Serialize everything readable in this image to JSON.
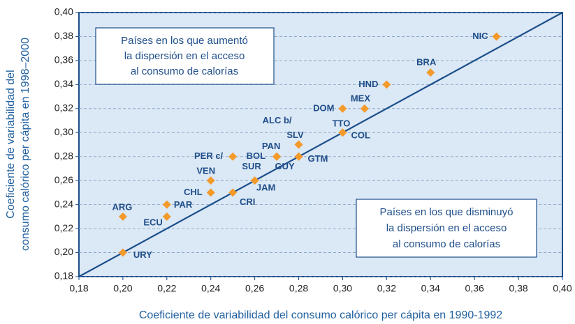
{
  "chart_data": {
    "type": "scatter",
    "x_label": "Coeficiente de variabilidad del consumo calórico per cápita en 1990-1992",
    "y_label": [
      "Coeficiente de variabilidad del",
      "consumo calórico per cápita en 1998–2000"
    ],
    "annotations": [
      [
        "Países en los que aumentó",
        "la dispersión en el acceso",
        "al consumo de calorías"
      ],
      [
        "Países en los que disminuyó",
        "la dispersión en el acceso",
        "al consumo de calorías"
      ]
    ],
    "color": "#f39a2b",
    "line_color": "#1a4e8a",
    "grid": true,
    "xlim": [
      0.18,
      0.4
    ],
    "ylim": [
      0.18,
      0.4
    ],
    "xticks": [
      {
        "value": 0.18,
        "label": "0,18"
      },
      {
        "value": 0.2,
        "label": "0,20"
      },
      {
        "value": 0.22,
        "label": "0,22"
      },
      {
        "value": 0.24,
        "label": "0,24"
      },
      {
        "value": 0.26,
        "label": "0,26"
      },
      {
        "value": 0.28,
        "label": "0,28"
      },
      {
        "value": 0.3,
        "label": "0,30"
      },
      {
        "value": 0.32,
        "label": "0,32"
      },
      {
        "value": 0.34,
        "label": "0,34"
      },
      {
        "value": 0.36,
        "label": "0,36"
      },
      {
        "value": 0.38,
        "label": "0,38"
      },
      {
        "value": 0.4,
        "label": "0,40"
      }
    ],
    "yticks": [
      {
        "value": 0.18,
        "label": "0,18"
      },
      {
        "value": 0.2,
        "label": "0,20"
      },
      {
        "value": 0.22,
        "label": "0,22"
      },
      {
        "value": 0.24,
        "label": "0,24"
      },
      {
        "value": 0.26,
        "label": "0,26"
      },
      {
        "value": 0.28,
        "label": "0,28"
      },
      {
        "value": 0.3,
        "label": "0,30"
      },
      {
        "value": 0.32,
        "label": "0,32"
      },
      {
        "value": 0.34,
        "label": "0,34"
      },
      {
        "value": 0.36,
        "label": "0,36"
      },
      {
        "value": 0.38,
        "label": "0,38"
      },
      {
        "value": 0.4,
        "label": "0,40"
      }
    ],
    "points": [
      {
        "label": "NIC",
        "x": 0.37,
        "y": 0.38
      },
      {
        "label": "BRA",
        "x": 0.34,
        "y": 0.35
      },
      {
        "label": "HND",
        "x": 0.32,
        "y": 0.34
      },
      {
        "label": "MEX",
        "x": 0.31,
        "y": 0.32
      },
      {
        "label": "DOM",
        "x": 0.3,
        "y": 0.32
      },
      {
        "label": "TTO",
        "x": 0.3,
        "y": 0.3
      },
      {
        "label": "COL",
        "x": 0.3,
        "y": 0.3
      },
      {
        "label": "ALC b/",
        "x": 0.28,
        "y": 0.29
      },
      {
        "label": "SLV",
        "x": 0.28,
        "y": 0.29
      },
      {
        "label": "PAN",
        "x": 0.27,
        "y": 0.28
      },
      {
        "label": "BOL",
        "x": 0.27,
        "y": 0.28
      },
      {
        "label": "GTM",
        "x": 0.28,
        "y": 0.28
      },
      {
        "label": "PER c/",
        "x": 0.25,
        "y": 0.28
      },
      {
        "label": "SUR",
        "x": 0.27,
        "y": 0.28
      },
      {
        "label": "GUY",
        "x": 0.28,
        "y": 0.28
      },
      {
        "label": "JAM",
        "x": 0.26,
        "y": 0.26
      },
      {
        "label": "VEN",
        "x": 0.24,
        "y": 0.26
      },
      {
        "label": "CHL",
        "x": 0.24,
        "y": 0.25
      },
      {
        "label": "CRI",
        "x": 0.25,
        "y": 0.25
      },
      {
        "label": "PAR",
        "x": 0.22,
        "y": 0.24
      },
      {
        "label": "ECU",
        "x": 0.22,
        "y": 0.23
      },
      {
        "label": "ARG",
        "x": 0.2,
        "y": 0.23
      },
      {
        "label": "URY",
        "x": 0.2,
        "y": 0.2
      }
    ]
  }
}
